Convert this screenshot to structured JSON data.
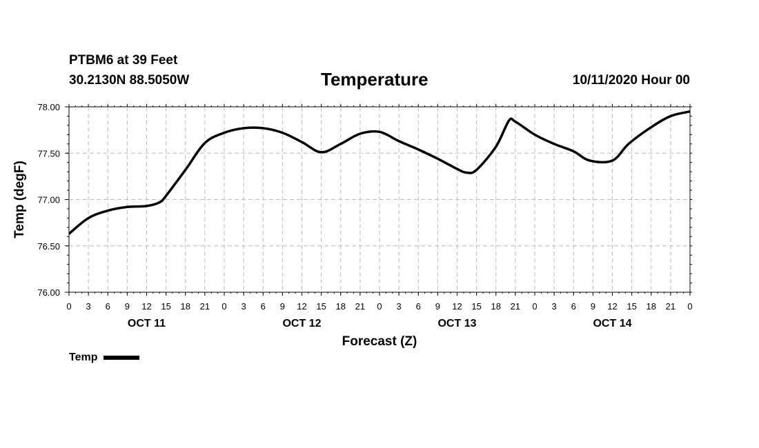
{
  "header": {
    "station": "PTBM6 at 39 Feet",
    "coords": "30.2130N 88.5050W",
    "run": "10/11/2020 Hour 00"
  },
  "chart_data": {
    "type": "line",
    "title": "Temperature",
    "xlabel": "Forecast (Z)",
    "ylabel": "Temp (degF)",
    "ylim": [
      76.0,
      78.0
    ],
    "xlim_hours": [
      0,
      96
    ],
    "y_ticks": [
      "76.00",
      "76.50",
      "77.00",
      "77.50",
      "78.00"
    ],
    "x_tick_labels": [
      "0",
      "3",
      "6",
      "9",
      "12",
      "15",
      "18",
      "21",
      "0",
      "3",
      "6",
      "9",
      "12",
      "15",
      "18",
      "21",
      "0",
      "3",
      "6",
      "9",
      "12",
      "15",
      "18",
      "21",
      "0",
      "3",
      "6",
      "9",
      "12",
      "15",
      "18",
      "21",
      "0"
    ],
    "day_labels": [
      {
        "label": "OCT 11",
        "hour": 12
      },
      {
        "label": "OCT 12",
        "hour": 36
      },
      {
        "label": "OCT 13",
        "hour": 60
      },
      {
        "label": "OCT 14",
        "hour": 84
      }
    ],
    "grid": true,
    "legend": "bottom-left",
    "series": [
      {
        "name": "Temp",
        "color": "#000000",
        "hours": [
          0,
          3,
          6,
          9,
          12,
          14,
          15,
          18,
          21,
          24,
          27,
          30,
          33,
          36,
          39,
          42,
          45,
          48,
          51,
          54,
          57,
          60,
          61.5,
          63,
          66,
          68,
          69,
          72,
          75,
          78,
          80.5,
          84,
          86.5,
          90,
          93,
          96
        ],
        "values": [
          76.63,
          76.8,
          76.88,
          76.92,
          76.93,
          76.97,
          77.04,
          77.32,
          77.61,
          77.72,
          77.77,
          77.77,
          77.72,
          77.62,
          77.51,
          77.6,
          77.71,
          77.73,
          77.63,
          77.54,
          77.44,
          77.33,
          77.29,
          77.32,
          77.57,
          77.85,
          77.84,
          77.7,
          77.6,
          77.52,
          77.42,
          77.42,
          77.6,
          77.78,
          77.9,
          77.95
        ]
      }
    ]
  }
}
